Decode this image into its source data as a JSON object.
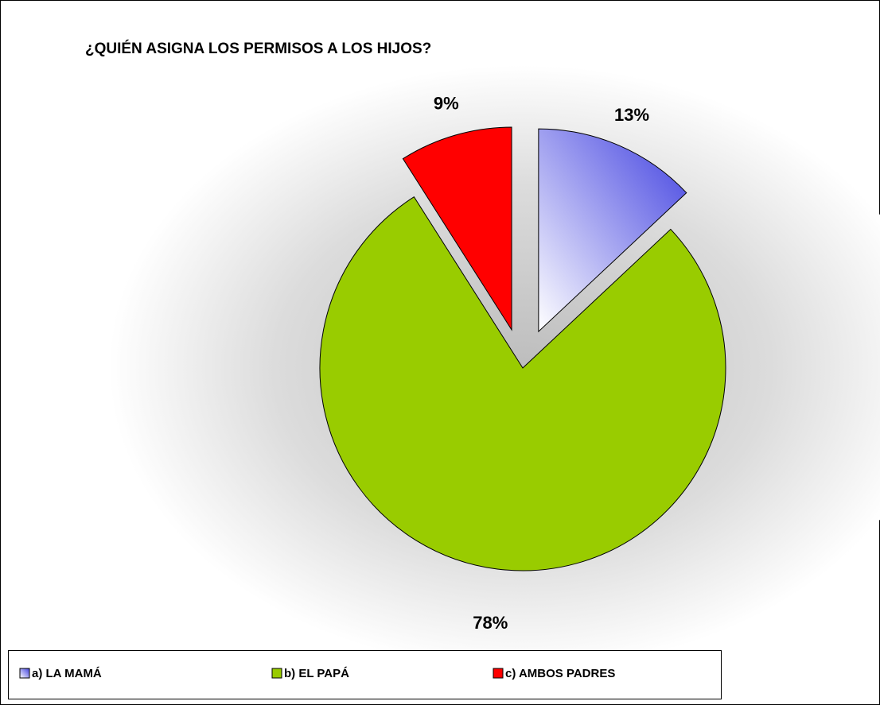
{
  "chart_data": {
    "type": "pie",
    "title": "¿QUIÉN ASIGNA LOS PERMISOS A LOS HIJOS?",
    "categories": [
      "a)  LA MAMÁ",
      "b)  EL PAPÁ",
      "c) AMBOS PADRES"
    ],
    "values": [
      13,
      78,
      9
    ],
    "value_labels": [
      "13%",
      "78%",
      "9%"
    ],
    "colors": [
      "#4040e0",
      "#99cc00",
      "#ff0000"
    ]
  }
}
